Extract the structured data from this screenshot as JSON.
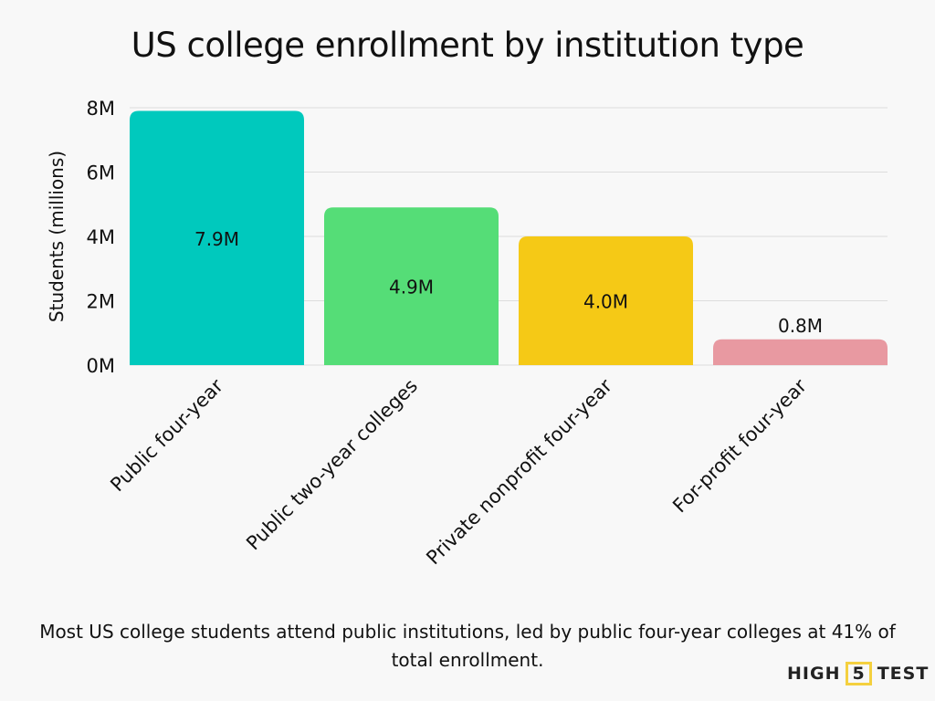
{
  "chart_data": {
    "type": "bar",
    "title": "US college enrollment by institution type",
    "xlabel": "",
    "ylabel": "Students (millions)",
    "categories": [
      "Public four-year",
      "Public two-year colleges",
      "Private nonprofit four-year",
      "For-profit four-year"
    ],
    "values": [
      7.9,
      4.9,
      4.0,
      0.8
    ],
    "data_labels": [
      "7.9M",
      "4.9M",
      "4.0M",
      "0.8M"
    ],
    "colors": [
      "#00c9bd",
      "#55dd77",
      "#f5c916",
      "#e899a1"
    ],
    "ylim": [
      0,
      8
    ],
    "yticks": [
      0,
      2,
      4,
      6,
      8
    ],
    "ytick_labels": [
      "0M",
      "2M",
      "4M",
      "6M",
      "8M"
    ],
    "grid": true,
    "legend": "none"
  },
  "caption": "Most US college students attend public institutions, led by public four-year colleges at 41% of total enrollment.",
  "logo": {
    "left": "HIGH",
    "mid": "5",
    "right": "TEST",
    "accent": "#f4d03f"
  }
}
